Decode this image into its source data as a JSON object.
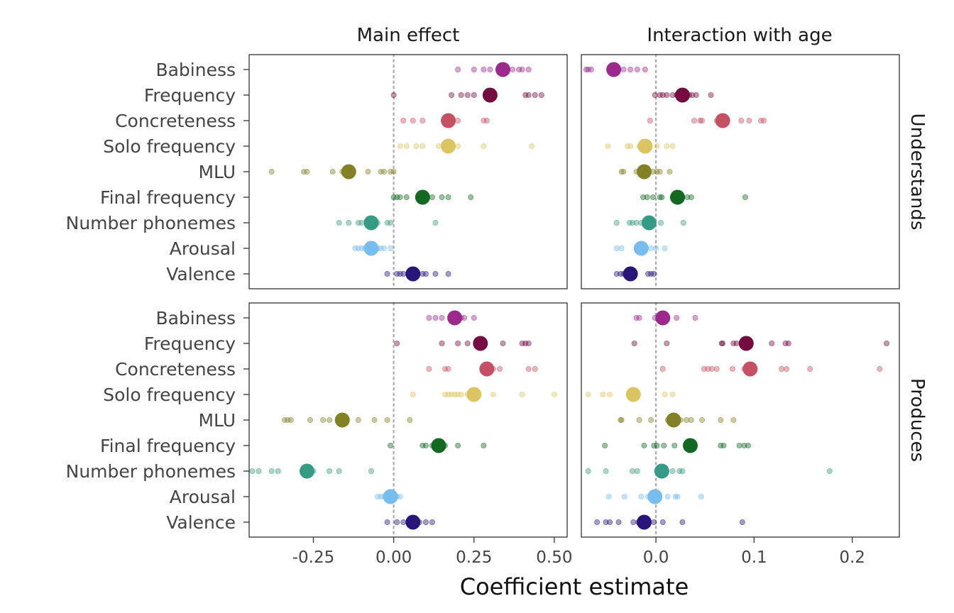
{
  "chart_data": {
    "type": "scatter",
    "xlabel": "Coefficient estimate",
    "columns": [
      "Main effect",
      "Interaction with age"
    ],
    "rows": [
      "Understands",
      "Produces"
    ],
    "predictors": [
      "Babiness",
      "Frequency",
      "Concreteness",
      "Solo frequency",
      "MLU",
      "Final frequency",
      "Number phonemes",
      "Arousal",
      "Valence"
    ],
    "colors": {
      "Babiness": "#9c2a8c",
      "Frequency": "#740c3f",
      "Concreteness": "#c65063",
      "Solo frequency": "#dbc562",
      "MLU": "#828125",
      "Final frequency": "#136822",
      "Number phonemes": "#369b84",
      "Arousal": "#77bdee",
      "Valence": "#2a157a"
    },
    "x_axes": {
      "Main effect": {
        "xlim": [
          -0.45,
          0.54
        ],
        "ticks": [
          -0.25,
          0.0,
          0.25,
          0.5
        ],
        "tick_labels": [
          "-0.25",
          "0.00",
          "0.25",
          "0.50"
        ]
      },
      "Interaction with age": {
        "xlim": [
          -0.076,
          0.248
        ],
        "ticks": [
          0.0,
          0.1,
          0.2
        ],
        "tick_labels": [
          "0.0",
          "0.1",
          "0.2"
        ]
      }
    },
    "panels": [
      {
        "row": "Understands",
        "column": "Main effect",
        "points": [
          {
            "predictor": "Babiness",
            "estimate": 0.34,
            "languages": [
              0.2,
              0.25,
              0.28,
              0.3,
              0.35,
              0.37,
              0.39,
              0.4,
              0.42
            ]
          },
          {
            "predictor": "Frequency",
            "estimate": 0.3,
            "languages": [
              0.0,
              0.18,
              0.21,
              0.23,
              0.25,
              0.31,
              0.41,
              0.42,
              0.44,
              0.46
            ]
          },
          {
            "predictor": "Concreteness",
            "estimate": 0.17,
            "languages": [
              0.03,
              0.06,
              0.09,
              0.2,
              0.28,
              0.29
            ]
          },
          {
            "predictor": "Solo frequency",
            "estimate": 0.17,
            "languages": [
              0.02,
              0.04,
              0.07,
              0.09,
              0.14,
              0.2,
              0.28,
              0.43
            ]
          },
          {
            "predictor": "MLU",
            "estimate": -0.14,
            "languages": [
              -0.38,
              -0.28,
              -0.27,
              -0.19,
              -0.16,
              -0.08,
              -0.04,
              -0.03,
              -0.01,
              0.0
            ]
          },
          {
            "predictor": "Final frequency",
            "estimate": 0.09,
            "languages": [
              0.0,
              0.01,
              0.02,
              0.04,
              0.08,
              0.1,
              0.12,
              0.15,
              0.17,
              0.24
            ]
          },
          {
            "predictor": "Number phonemes",
            "estimate": -0.07,
            "languages": [
              -0.17,
              -0.14,
              -0.11,
              -0.1,
              -0.08,
              -0.05,
              -0.02,
              -0.01,
              0.13
            ]
          },
          {
            "predictor": "Arousal",
            "estimate": -0.07,
            "languages": [
              -0.12,
              -0.11,
              -0.1,
              -0.09,
              -0.08,
              -0.06,
              -0.05,
              -0.04,
              -0.03,
              -0.01
            ]
          },
          {
            "predictor": "Valence",
            "estimate": 0.06,
            "languages": [
              -0.02,
              0.01,
              0.02,
              0.03,
              0.05,
              0.09,
              0.1,
              0.13,
              0.17
            ]
          }
        ]
      },
      {
        "row": "Understands",
        "column": "Interaction with age",
        "points": [
          {
            "predictor": "Babiness",
            "estimate": -0.043,
            "languages": [
              -0.071,
              -0.069,
              -0.066,
              -0.033,
              -0.026,
              -0.019,
              -0.011
            ]
          },
          {
            "predictor": "Frequency",
            "estimate": 0.027,
            "languages": [
              -0.001,
              0.004,
              0.007,
              0.011,
              0.017,
              0.021,
              0.031,
              0.034,
              0.037,
              0.041,
              0.056
            ]
          },
          {
            "predictor": "Concreteness",
            "estimate": 0.068,
            "languages": [
              -0.006,
              0.039,
              0.045,
              0.047,
              0.062,
              0.064,
              0.087,
              0.095,
              0.107,
              0.11
            ]
          },
          {
            "predictor": "Solo frequency",
            "estimate": -0.011,
            "languages": [
              -0.049,
              -0.029,
              -0.026,
              -0.017,
              0.001,
              0.011,
              0.017
            ]
          },
          {
            "predictor": "MLU",
            "estimate": -0.012,
            "languages": [
              -0.035,
              -0.033,
              -0.02,
              -0.014,
              -0.003,
              0.001,
              0.004,
              0.014
            ]
          },
          {
            "predictor": "Final frequency",
            "estimate": 0.022,
            "languages": [
              -0.013,
              -0.009,
              -0.003,
              0.004,
              0.006,
              0.017,
              0.027,
              0.032,
              0.036,
              0.091
            ]
          },
          {
            "predictor": "Number phonemes",
            "estimate": -0.007,
            "languages": [
              -0.04,
              -0.027,
              -0.024,
              -0.02,
              -0.015,
              -0.011,
              -0.004,
              0.005,
              0.028
            ]
          },
          {
            "predictor": "Arousal",
            "estimate": -0.015,
            "languages": [
              -0.04,
              -0.035,
              -0.02,
              -0.015,
              -0.01,
              -0.005,
              0.0,
              0.009
            ]
          },
          {
            "predictor": "Valence",
            "estimate": -0.026,
            "languages": [
              -0.04,
              -0.036,
              -0.033,
              -0.028,
              -0.022,
              -0.008,
              -0.005,
              -0.002
            ]
          }
        ]
      },
      {
        "row": "Produces",
        "column": "Main effect",
        "points": [
          {
            "predictor": "Babiness",
            "estimate": 0.19,
            "languages": [
              0.11,
              0.13,
              0.15,
              0.19,
              0.21,
              0.22,
              0.25
            ]
          },
          {
            "predictor": "Frequency",
            "estimate": 0.27,
            "languages": [
              0.01,
              0.15,
              0.2,
              0.23,
              0.28,
              0.34,
              0.4,
              0.41,
              0.42
            ]
          },
          {
            "predictor": "Concreteness",
            "estimate": 0.29,
            "languages": [
              0.11,
              0.16,
              0.17,
              0.3,
              0.31,
              0.33,
              0.42,
              0.44
            ]
          },
          {
            "predictor": "Solo frequency",
            "estimate": 0.25,
            "languages": [
              0.06,
              0.16,
              0.17,
              0.18,
              0.19,
              0.2,
              0.21,
              0.23,
              0.31,
              0.4,
              0.5
            ]
          },
          {
            "predictor": "MLU",
            "estimate": -0.16,
            "languages": [
              -0.34,
              -0.33,
              -0.32,
              -0.26,
              -0.22,
              -0.2,
              -0.11,
              -0.06,
              -0.02,
              0.05
            ]
          },
          {
            "predictor": "Final frequency",
            "estimate": 0.14,
            "languages": [
              -0.01,
              0.09,
              0.1,
              0.12,
              0.13,
              0.16,
              0.2,
              0.28
            ]
          },
          {
            "predictor": "Number phonemes",
            "estimate": -0.27,
            "languages": [
              -0.44,
              -0.42,
              -0.38,
              -0.36,
              -0.26,
              -0.25,
              -0.2,
              -0.17,
              -0.07
            ]
          },
          {
            "predictor": "Arousal",
            "estimate": -0.01,
            "languages": [
              -0.05,
              -0.04,
              -0.03,
              -0.02,
              0.0,
              0.01,
              0.02
            ]
          },
          {
            "predictor": "Valence",
            "estimate": 0.06,
            "languages": [
              -0.02,
              0.01,
              0.03,
              0.07,
              0.08,
              0.1,
              0.12
            ]
          }
        ]
      },
      {
        "row": "Produces",
        "column": "Interaction with age",
        "points": [
          {
            "predictor": "Babiness",
            "estimate": 0.007,
            "languages": [
              -0.02,
              -0.017,
              -0.001,
              0.021,
              0.04
            ]
          },
          {
            "predictor": "Frequency",
            "estimate": 0.092,
            "languages": [
              -0.022,
              0.011,
              0.067,
              0.068,
              0.079,
              0.082,
              0.118,
              0.132,
              0.135,
              0.235
            ]
          },
          {
            "predictor": "Concreteness",
            "estimate": 0.096,
            "languages": [
              0.007,
              0.049,
              0.053,
              0.057,
              0.062,
              0.078,
              0.09,
              0.128,
              0.133,
              0.157,
              0.228
            ]
          },
          {
            "predictor": "Solo frequency",
            "estimate": -0.023,
            "languages": [
              -0.069,
              -0.054,
              -0.047,
              -0.021,
              0.009,
              0.017
            ]
          },
          {
            "predictor": "MLU",
            "estimate": 0.018,
            "languages": [
              -0.036,
              -0.035,
              -0.017,
              -0.005,
              0.012,
              0.025,
              0.031,
              0.036,
              0.047,
              0.066,
              0.079
            ]
          },
          {
            "predictor": "Final frequency",
            "estimate": 0.035,
            "languages": [
              -0.052,
              -0.012,
              -0.002,
              0.001,
              0.008,
              0.019,
              0.066,
              0.069,
              0.085,
              0.09,
              0.094
            ]
          },
          {
            "predictor": "Number phonemes",
            "estimate": 0.006,
            "languages": [
              -0.069,
              -0.051,
              -0.024,
              -0.019,
              0.017,
              0.024,
              0.027,
              0.177
            ]
          },
          {
            "predictor": "Arousal",
            "estimate": -0.001,
            "languages": [
              -0.048,
              -0.032,
              -0.015,
              -0.008,
              0.0,
              0.012,
              0.02,
              0.022,
              0.046
            ]
          },
          {
            "predictor": "Valence",
            "estimate": -0.012,
            "languages": [
              -0.06,
              -0.051,
              -0.047,
              -0.038,
              -0.023,
              -0.018,
              -0.002,
              0.007,
              0.027,
              0.088
            ]
          }
        ]
      }
    ]
  }
}
